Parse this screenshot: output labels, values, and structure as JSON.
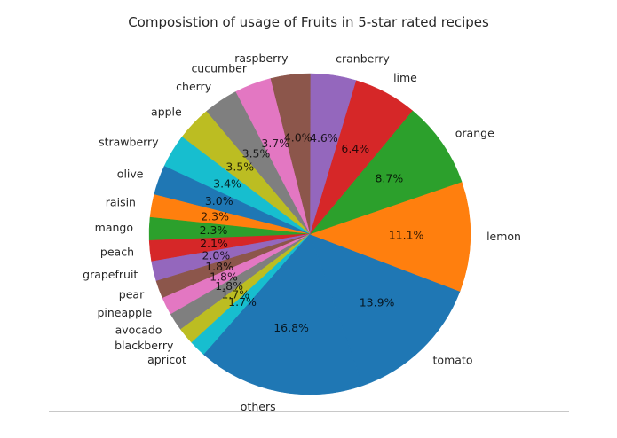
{
  "chart_data": {
    "type": "pie",
    "title": "Composistion of usage of Fruits in 5-star rated recipes",
    "start_angle_deg": -70.9,
    "counterclock": true,
    "autopct_format": "%1.1f%%",
    "label_distance": 1.1,
    "pct_distance": 0.6,
    "slices": [
      {
        "label": "tomato",
        "value": 13.9,
        "color": "#1f77b4"
      },
      {
        "label": "lemon",
        "value": 11.1,
        "color": "#ff7f0e"
      },
      {
        "label": "orange",
        "value": 8.7,
        "color": "#2ca02c"
      },
      {
        "label": "lime",
        "value": 6.4,
        "color": "#d62728"
      },
      {
        "label": "cranberry",
        "value": 4.6,
        "color": "#9467bd"
      },
      {
        "label": "raspberry",
        "value": 4.0,
        "color": "#8c564b"
      },
      {
        "label": "cucumber",
        "value": 3.7,
        "color": "#e377c2"
      },
      {
        "label": "cherry",
        "value": 3.5,
        "color": "#7f7f7f"
      },
      {
        "label": "apple",
        "value": 3.5,
        "color": "#bcbd22"
      },
      {
        "label": "strawberry",
        "value": 3.4,
        "color": "#17becf"
      },
      {
        "label": "olive",
        "value": 3.0,
        "color": "#1f77b4"
      },
      {
        "label": "raisin",
        "value": 2.3,
        "color": "#ff7f0e"
      },
      {
        "label": "mango",
        "value": 2.3,
        "color": "#2ca02c"
      },
      {
        "label": "peach",
        "value": 2.1,
        "color": "#d62728"
      },
      {
        "label": "grapefruit",
        "value": 2.0,
        "color": "#9467bd"
      },
      {
        "label": "pear",
        "value": 1.8,
        "color": "#8c564b"
      },
      {
        "label": "pineapple",
        "value": 1.8,
        "color": "#e377c2"
      },
      {
        "label": "avocado",
        "value": 1.8,
        "color": "#7f7f7f"
      },
      {
        "label": "blackberry",
        "value": 1.7,
        "color": "#bcbd22"
      },
      {
        "label": "apricot",
        "value": 1.7,
        "color": "#17becf"
      },
      {
        "label": "others",
        "value": 16.8,
        "color": "#1f77b4"
      }
    ]
  }
}
